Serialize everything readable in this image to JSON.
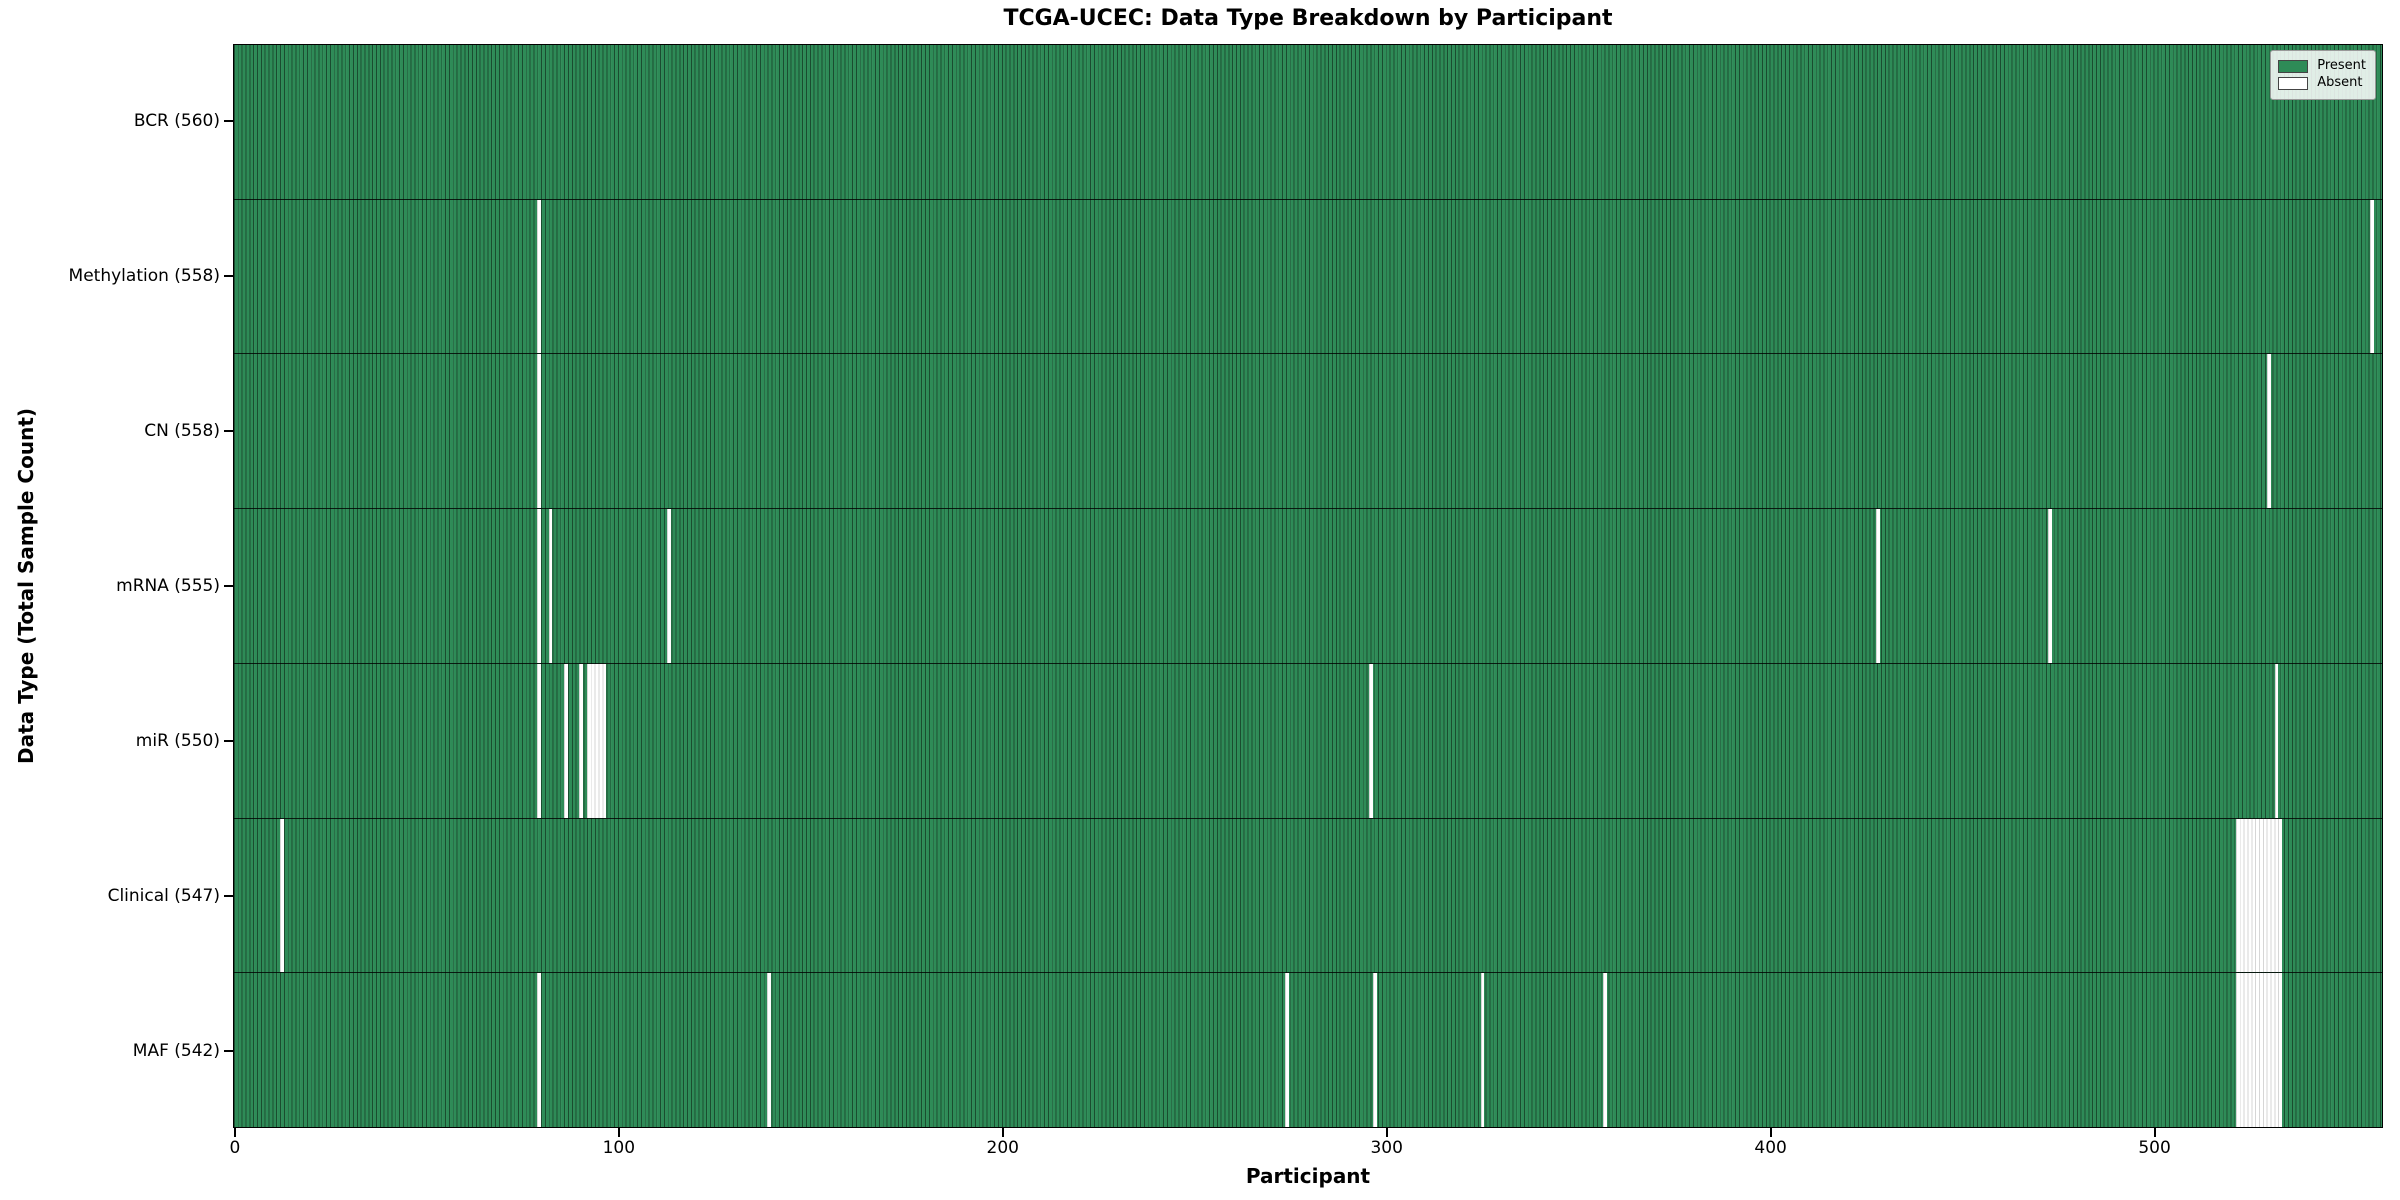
{
  "title": "TCGA-UCEC: Data Type Breakdown by Participant",
  "axes": {
    "xlabel": "Participant",
    "ylabel": "Data Type (Total Sample Count)"
  },
  "legend": {
    "position": "upper right",
    "entries": [
      {
        "label": "Present",
        "color": "#2e8b57"
      },
      {
        "label": "Absent",
        "color": "#ffffff"
      }
    ]
  },
  "colors": {
    "present": "#2e8b57",
    "absent": "#ffffff",
    "bar_edge_on_green": "rgba(10,25,15,0.55)",
    "bar_edge_on_white": "rgba(0,0,0,0.16)",
    "row_separator": "rgba(0,0,0,0.8)",
    "spine": "#000000",
    "background": "#ffffff"
  },
  "chart_data": {
    "type": "heatmap",
    "title": "TCGA-UCEC: Data Type Breakdown by Participant",
    "xlabel": "Participant",
    "ylabel": "Data Type (Total Sample Count)",
    "legend_entries": [
      "Present",
      "Absent"
    ],
    "legend_position": "upper right",
    "n_participants": 560,
    "x_ticks": [
      0,
      100,
      200,
      300,
      400,
      500
    ],
    "xlim": [
      0,
      560
    ],
    "grid": false,
    "rows": [
      {
        "data_type": "BCR",
        "label": "BCR (560)",
        "present_count": 560,
        "absent_participants": []
      },
      {
        "data_type": "Methylation",
        "label": "Methylation (558)",
        "present_count": 558,
        "absent_participants": [
          79,
          557
        ]
      },
      {
        "data_type": "CN",
        "label": "CN (558)",
        "present_count": 558,
        "absent_participants": [
          79,
          530
        ]
      },
      {
        "data_type": "mRNA",
        "label": "mRNA (555)",
        "present_count": 555,
        "absent_participants": [
          79,
          82,
          113,
          428,
          473
        ]
      },
      {
        "data_type": "miR",
        "label": "miR (550)",
        "present_count": 550,
        "absent_participants": [
          79,
          86,
          90,
          92,
          93,
          94,
          95,
          96,
          296,
          532
        ]
      },
      {
        "data_type": "Clinical",
        "label": "Clinical (547)",
        "present_count": 547,
        "absent_participants": [
          12,
          522,
          523,
          524,
          525,
          526,
          527,
          528,
          529,
          530,
          531,
          532,
          533
        ]
      },
      {
        "data_type": "MAF",
        "label": "MAF (542)",
        "present_count": 542,
        "absent_participants": [
          79,
          139,
          274,
          297,
          325,
          357,
          522,
          523,
          524,
          525,
          526,
          527,
          528,
          529,
          530,
          531,
          532,
          533
        ]
      }
    ]
  }
}
